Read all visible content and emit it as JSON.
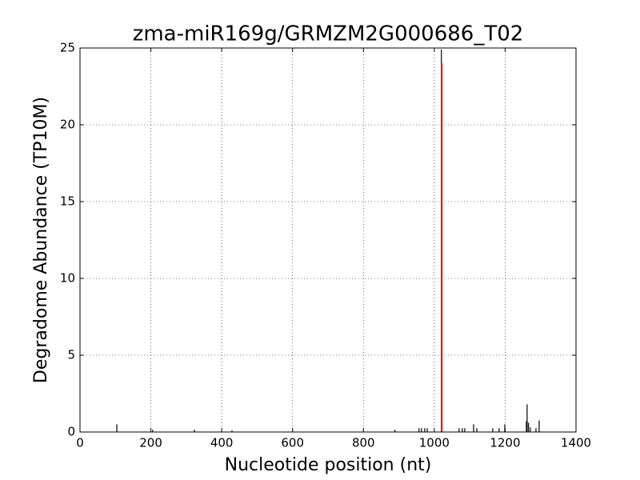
{
  "chart_data": {
    "type": "spike",
    "title": "zma-miR169g/GRMZM2G000686_T02",
    "x_label": "Nucleotide position (nt)",
    "y_label": "Degradome Abundance (TP10M)",
    "xlim": [
      0,
      1400
    ],
    "xticks": [
      0,
      200,
      400,
      600,
      800,
      1000,
      1200,
      1400
    ],
    "ylim": [
      0,
      25
    ],
    "yticks": [
      0,
      5,
      10,
      15,
      20,
      25
    ],
    "grid": true,
    "series": [
      {
        "color": "#000000",
        "x": [
          104,
          205,
          323,
          429,
          889,
          957,
          964,
          973,
          980,
          1020,
          1070,
          1079,
          1086,
          1111,
          1120,
          1165,
          1183,
          1199,
          1260,
          1262,
          1266,
          1271,
          1287,
          1296
        ],
        "values": [
          0.5,
          0.15,
          0.15,
          0.1,
          0.15,
          0.25,
          0.25,
          0.25,
          0.25,
          24.9,
          0.25,
          0.25,
          0.25,
          0.5,
          0.25,
          0.25,
          0.25,
          0.5,
          0.7,
          1.8,
          0.6,
          0.3,
          0.25,
          0.75
        ]
      },
      {
        "color": "#ff0000",
        "x": [
          1021
        ],
        "values": [
          24
        ]
      }
    ]
  }
}
